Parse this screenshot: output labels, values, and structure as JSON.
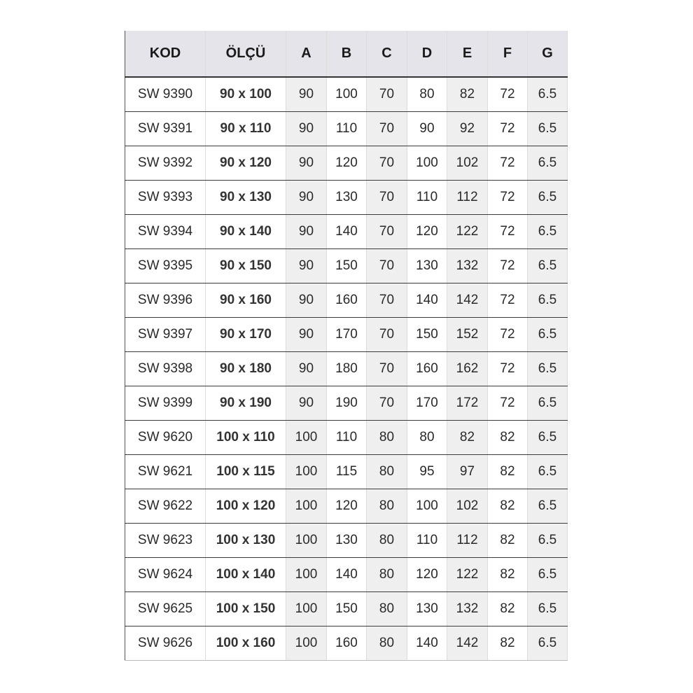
{
  "headers": [
    "KOD",
    "ÖLÇÜ",
    "A",
    "B",
    "C",
    "D",
    "E",
    "F",
    "G"
  ],
  "rows": [
    [
      "SW 9390",
      "90 x 100",
      "90",
      "100",
      "70",
      "80",
      "82",
      "72",
      "6.5"
    ],
    [
      "SW 9391",
      "90 x 110",
      "90",
      "110",
      "70",
      "90",
      "92",
      "72",
      "6.5"
    ],
    [
      "SW 9392",
      "90 x 120",
      "90",
      "120",
      "70",
      "100",
      "102",
      "72",
      "6.5"
    ],
    [
      "SW 9393",
      "90 x 130",
      "90",
      "130",
      "70",
      "110",
      "112",
      "72",
      "6.5"
    ],
    [
      "SW 9394",
      "90 x 140",
      "90",
      "140",
      "70",
      "120",
      "122",
      "72",
      "6.5"
    ],
    [
      "SW 9395",
      "90 x 150",
      "90",
      "150",
      "70",
      "130",
      "132",
      "72",
      "6.5"
    ],
    [
      "SW 9396",
      "90 x 160",
      "90",
      "160",
      "70",
      "140",
      "142",
      "72",
      "6.5"
    ],
    [
      "SW 9397",
      "90 x 170",
      "90",
      "170",
      "70",
      "150",
      "152",
      "72",
      "6.5"
    ],
    [
      "SW 9398",
      "90 x 180",
      "90",
      "180",
      "70",
      "160",
      "162",
      "72",
      "6.5"
    ],
    [
      "SW 9399",
      "90 x 190",
      "90",
      "190",
      "70",
      "170",
      "172",
      "72",
      "6.5"
    ],
    [
      "SW 9620",
      "100 x 110",
      "100",
      "110",
      "80",
      "80",
      "82",
      "82",
      "6.5"
    ],
    [
      "SW 9621",
      "100 x 115",
      "100",
      "115",
      "80",
      "95",
      "97",
      "82",
      "6.5"
    ],
    [
      "SW 9622",
      "100 x 120",
      "100",
      "120",
      "80",
      "100",
      "102",
      "82",
      "6.5"
    ],
    [
      "SW 9623",
      "100 x 130",
      "100",
      "130",
      "80",
      "110",
      "112",
      "82",
      "6.5"
    ],
    [
      "SW 9624",
      "100 x 140",
      "100",
      "140",
      "80",
      "120",
      "122",
      "82",
      "6.5"
    ],
    [
      "SW 9625",
      "100 x 150",
      "100",
      "150",
      "80",
      "130",
      "132",
      "82",
      "6.5"
    ],
    [
      "SW 9626",
      "100 x 160",
      "100",
      "160",
      "80",
      "140",
      "142",
      "82",
      "6.5"
    ]
  ],
  "colors": {
    "header_bg": "#e4e4ea",
    "shaded_column_bg": "#efefef"
  }
}
